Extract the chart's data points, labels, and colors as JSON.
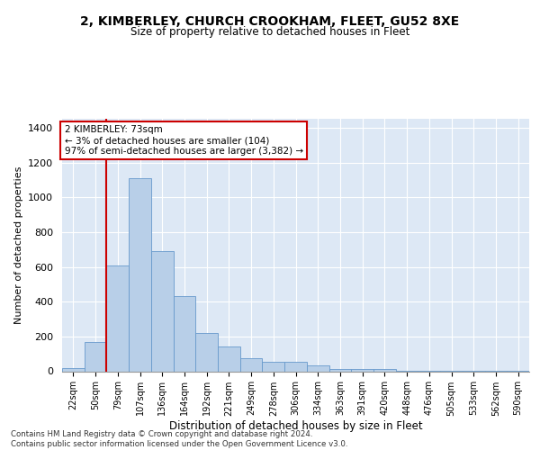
{
  "title_line1": "2, KIMBERLEY, CHURCH CROOKHAM, FLEET, GU52 8XE",
  "title_line2": "Size of property relative to detached houses in Fleet",
  "xlabel": "Distribution of detached houses by size in Fleet",
  "ylabel": "Number of detached properties",
  "bar_labels": [
    "22sqm",
    "50sqm",
    "79sqm",
    "107sqm",
    "136sqm",
    "164sqm",
    "192sqm",
    "221sqm",
    "249sqm",
    "278sqm",
    "306sqm",
    "334sqm",
    "363sqm",
    "391sqm",
    "420sqm",
    "448sqm",
    "476sqm",
    "505sqm",
    "533sqm",
    "562sqm",
    "590sqm"
  ],
  "bar_heights": [
    20,
    170,
    610,
    1110,
    690,
    430,
    220,
    140,
    75,
    55,
    55,
    35,
    15,
    15,
    12,
    5,
    5,
    2,
    2,
    1,
    1
  ],
  "bar_color": "#b8cfe8",
  "bar_edge_color": "#6699cc",
  "background_color": "#dde8f5",
  "grid_color": "#ffffff",
  "vline_color": "#cc0000",
  "vline_position": 1.5,
  "annotation_text": "2 KIMBERLEY: 73sqm\n← 3% of detached houses are smaller (104)\n97% of semi-detached houses are larger (3,382) →",
  "annotation_box_color": "#ffffff",
  "annotation_box_edge": "#cc0000",
  "ylim": [
    0,
    1450
  ],
  "yticks": [
    0,
    200,
    400,
    600,
    800,
    1000,
    1200,
    1400
  ],
  "footer_text": "Contains HM Land Registry data © Crown copyright and database right 2024.\nContains public sector information licensed under the Open Government Licence v3.0."
}
